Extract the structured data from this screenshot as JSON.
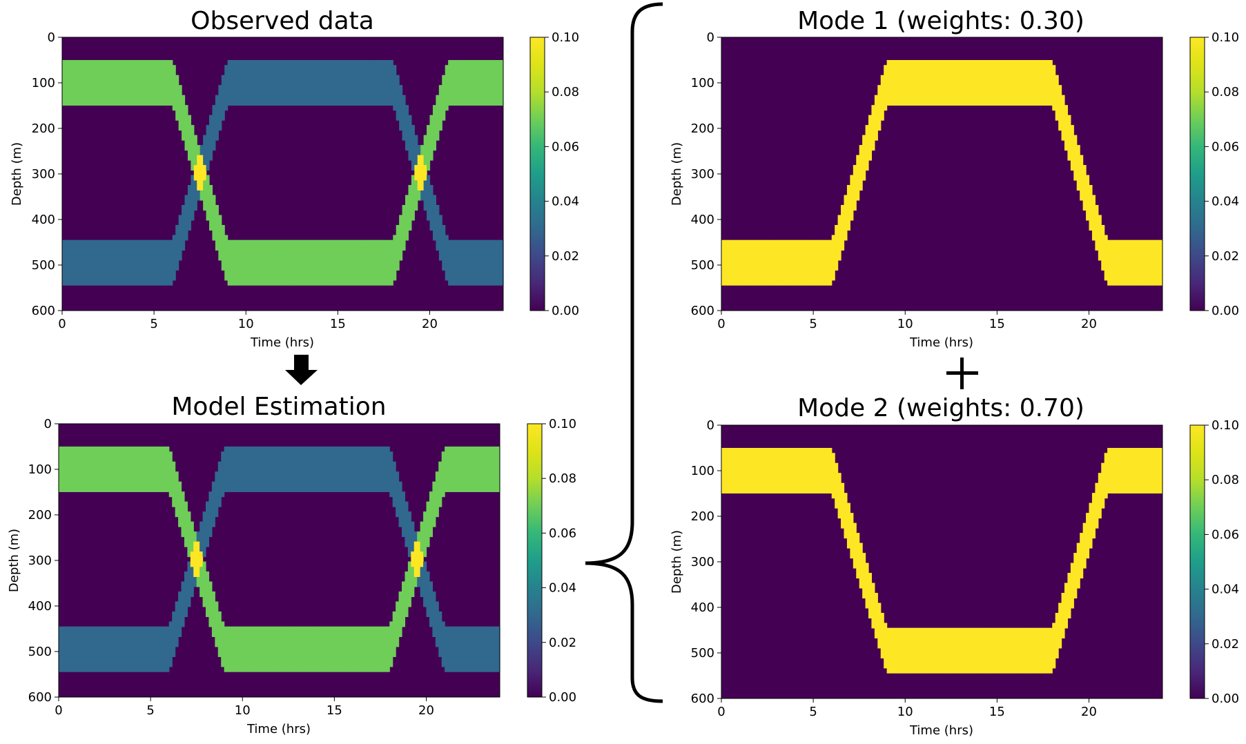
{
  "colors": {
    "background": "#440154",
    "value_0_03": "#31688e",
    "value_0_07": "#44bf70",
    "value_0_10": "#fde725",
    "connector": "#000000"
  },
  "colormap": "viridis",
  "connectors": {
    "down_arrow": "arrow-down-icon",
    "brace": "curly-brace-icon",
    "plus": "plus-icon"
  },
  "chart_data": [
    {
      "id": "observed",
      "type": "heatmap",
      "title": "Observed data",
      "xlabel": "Time (hrs)",
      "ylabel": "Depth (m)",
      "xlim": [
        0,
        24
      ],
      "ylim": [
        600,
        0
      ],
      "xticks": [
        "0",
        "5",
        "10",
        "15",
        "20"
      ],
      "yticks": [
        "0",
        "100",
        "200",
        "300",
        "400",
        "500",
        "600"
      ],
      "colorbar": {
        "range": [
          0,
          0.1
        ],
        "ticks": [
          "0.00",
          "0.02",
          "0.04",
          "0.06",
          "0.08",
          "0.10"
        ]
      },
      "bands": [
        {
          "name": "",
          "value": 0.07,
          "half_width_m": 50,
          "path_time": [
            0,
            6,
            9,
            18,
            21,
            24
          ],
          "path_depth": [
            100,
            100,
            495,
            495,
            100,
            100
          ]
        },
        {
          "name": "",
          "value": 0.03,
          "half_width_m": 50,
          "path_time": [
            0,
            6,
            9,
            18,
            21,
            24
          ],
          "path_depth": [
            495,
            495,
            100,
            100,
            495,
            495
          ]
        }
      ]
    },
    {
      "id": "model",
      "type": "heatmap",
      "title": "Model Estimation",
      "xlabel": "Time (hrs)",
      "ylabel": "Depth (m)",
      "xlim": [
        0,
        24
      ],
      "ylim": [
        600,
        0
      ],
      "xticks": [
        "0",
        "5",
        "10",
        "15",
        "20"
      ],
      "yticks": [
        "0",
        "100",
        "200",
        "300",
        "400",
        "500",
        "600"
      ],
      "colorbar": {
        "range": [
          0,
          0.1
        ],
        "ticks": [
          "0.00",
          "0.02",
          "0.04",
          "0.06",
          "0.08",
          "0.10"
        ]
      },
      "bands": [
        {
          "name": "",
          "value": 0.07,
          "half_width_m": 50,
          "path_time": [
            0,
            6,
            9,
            18,
            21,
            24
          ],
          "path_depth": [
            100,
            100,
            495,
            495,
            100,
            100
          ]
        },
        {
          "name": "",
          "value": 0.03,
          "half_width_m": 50,
          "path_time": [
            0,
            6,
            9,
            18,
            21,
            24
          ],
          "path_depth": [
            495,
            495,
            100,
            100,
            495,
            495
          ]
        }
      ]
    },
    {
      "id": "mode1",
      "type": "heatmap",
      "title": "Mode 1 (weights: 0.30)",
      "xlabel": "Time (hrs)",
      "ylabel": "Depth (m)",
      "xlim": [
        0,
        24
      ],
      "ylim": [
        600,
        0
      ],
      "xticks": [
        "0",
        "5",
        "10",
        "15",
        "20"
      ],
      "yticks": [
        "0",
        "100",
        "200",
        "300",
        "400",
        "500",
        "600"
      ],
      "colorbar": {
        "range": [
          0,
          0.1
        ],
        "ticks": [
          "0.00",
          "0.02",
          "0.04",
          "0.06",
          "0.08",
          "0.10"
        ]
      },
      "bands": [
        {
          "name": "",
          "value": 0.1,
          "half_width_m": 50,
          "path_time": [
            0,
            6,
            9,
            18,
            21,
            24
          ],
          "path_depth": [
            495,
            495,
            100,
            100,
            495,
            495
          ]
        }
      ]
    },
    {
      "id": "mode2",
      "type": "heatmap",
      "title": "Mode 2 (weights: 0.70)",
      "xlabel": "Time (hrs)",
      "ylabel": "Depth (m)",
      "xlim": [
        0,
        24
      ],
      "ylim": [
        600,
        0
      ],
      "xticks": [
        "0",
        "5",
        "10",
        "15",
        "20"
      ],
      "yticks": [
        "0",
        "100",
        "200",
        "300",
        "400",
        "500",
        "600"
      ],
      "colorbar": {
        "range": [
          0,
          0.1
        ],
        "ticks": [
          "0.00",
          "0.02",
          "0.04",
          "0.06",
          "0.08",
          "0.10"
        ]
      },
      "bands": [
        {
          "name": "",
          "value": 0.1,
          "half_width_m": 50,
          "path_time": [
            0,
            6,
            9,
            18,
            21,
            24
          ],
          "path_depth": [
            100,
            100,
            495,
            495,
            100,
            100
          ]
        }
      ]
    }
  ]
}
